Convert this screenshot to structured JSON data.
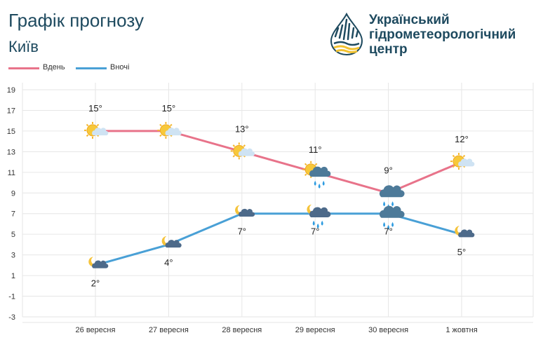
{
  "header": {
    "title": "Графік прогнозу",
    "city": "Київ"
  },
  "logo": {
    "line1": "Український",
    "line2": "гідрометеорологічний",
    "line3": "центр"
  },
  "colors": {
    "day": "#e8738a",
    "night": "#49a0d6",
    "grid": "#e6e6e6",
    "title": "#1e4a5f"
  },
  "chart_data": {
    "type": "line",
    "categories": [
      "26 вересня",
      "27 вересня",
      "28 вересня",
      "29 вересня",
      "30 вересня",
      "1 жовтня"
    ],
    "series": [
      {
        "name": "Вдень",
        "values": [
          15,
          15,
          13,
          11,
          9,
          12
        ],
        "labels": [
          "15°",
          "15°",
          "13°",
          "11°",
          "9°",
          "12°"
        ],
        "icons": [
          "sun-cloud-icon",
          "sun-cloud-icon",
          "sun-cloud-icon",
          "sun-rain-cloud-icon",
          "rain-cloud-icon",
          "sun-cloud-icon"
        ]
      },
      {
        "name": "Вночі",
        "values": [
          2,
          4,
          7,
          7,
          7,
          5
        ],
        "labels": [
          "2°",
          "4°",
          "7°",
          "7°",
          "7°",
          "5°"
        ],
        "icons": [
          "moon-cloud-icon",
          "moon-cloud-icon",
          "moon-cloud-icon",
          "moon-rain-cloud-icon",
          "rain-cloud-icon",
          "moon-cloud-icon"
        ]
      }
    ],
    "ylim": [
      -3,
      19
    ],
    "yticks": [
      "-3",
      "-1",
      "1",
      "3",
      "5",
      "7",
      "9",
      "11",
      "13",
      "15",
      "17",
      "19"
    ],
    "grid": true,
    "legend": "top-left"
  }
}
